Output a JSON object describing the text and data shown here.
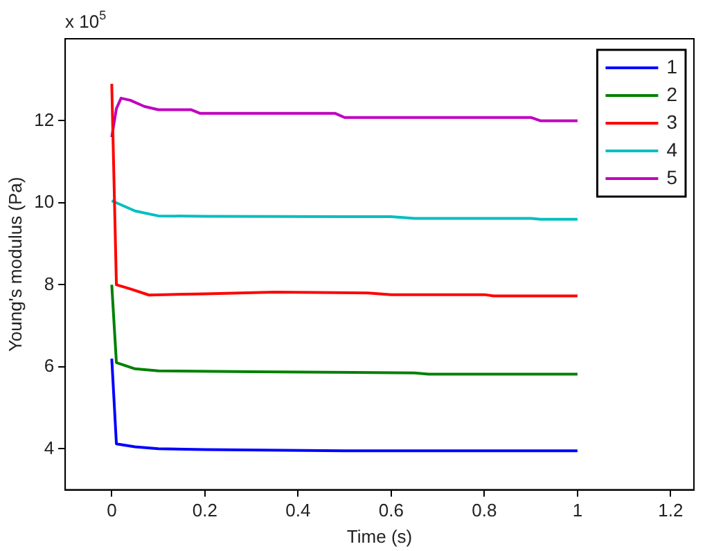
{
  "chart_data": {
    "type": "line",
    "xlabel": "Time (s)",
    "ylabel": "Young's modulus (Pa)",
    "annotations": [
      "x 10$^{5}$"
    ],
    "xlim": [
      -0.1,
      1.25
    ],
    "xticks": [
      0,
      {
        "value": 0.2,
        "label": "0.2"
      },
      {
        "value": 0.4,
        "label": "0.4"
      },
      {
        "value": 0.6,
        "label": "0.6"
      },
      {
        "value": 0.8,
        "label": "0.8"
      },
      1,
      {
        "value": 1.2,
        "label": "1.2"
      }
    ],
    "ylim": [
      3,
      14
    ],
    "yticks": [
      4,
      6,
      8,
      10,
      12
    ],
    "grid": false,
    "legend": "top right",
    "marker": "none",
    "line_style": "solid",
    "series": [
      {
        "name": "1",
        "color": "#0000ff",
        "x": [
          0,
          0.01,
          0.05,
          0.1,
          0.2,
          0.5,
          1
        ],
        "values": [
          6.2,
          4.12,
          4.05,
          4.0,
          3.98,
          3.95,
          3.95
        ]
      },
      {
        "name": "2",
        "color": "#008000",
        "x": [
          0,
          0.01,
          0.05,
          0.1,
          0.3,
          0.65,
          0.68,
          1
        ],
        "values": [
          8.0,
          6.1,
          5.95,
          5.9,
          5.88,
          5.85,
          5.82,
          5.82
        ]
      },
      {
        "name": "3",
        "color": "#ff0000",
        "x": [
          0,
          0.01,
          0.04,
          0.08,
          0.2,
          0.35,
          0.55,
          0.6,
          0.8,
          0.82,
          1
        ],
        "values": [
          12.9,
          8.0,
          7.9,
          7.75,
          7.78,
          7.82,
          7.8,
          7.76,
          7.76,
          7.73,
          7.73
        ]
      },
      {
        "name": "4",
        "color": "#00bfbf",
        "x": [
          0,
          0.05,
          0.1,
          0.2,
          0.6,
          0.65,
          0.9,
          0.92,
          1
        ],
        "values": [
          10.05,
          9.8,
          9.68,
          9.67,
          9.66,
          9.62,
          9.62,
          9.6,
          9.6
        ]
      },
      {
        "name": "5",
        "color": "#bf00bf",
        "x": [
          0,
          0.01,
          0.02,
          0.04,
          0.07,
          0.1,
          0.17,
          0.19,
          0.48,
          0.5,
          0.9,
          0.92,
          1
        ],
        "values": [
          11.6,
          12.3,
          12.55,
          12.5,
          12.35,
          12.27,
          12.27,
          12.18,
          12.18,
          12.08,
          12.08,
          12.0,
          12.0
        ]
      }
    ]
  }
}
